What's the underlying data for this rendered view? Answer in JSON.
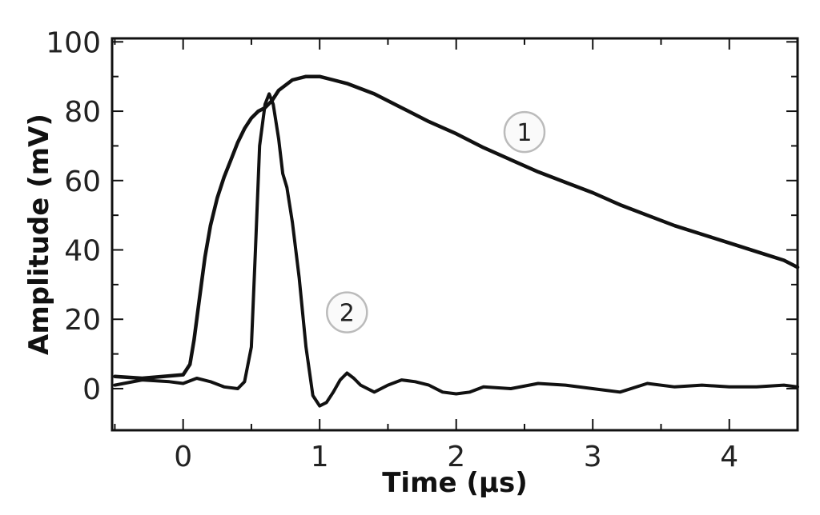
{
  "chart_data": {
    "type": "line",
    "xlabel": "Time (μs)",
    "ylabel": "Amplitude (mV)",
    "xlim": [
      -0.52,
      4.5
    ],
    "ylim": [
      -12,
      101
    ],
    "x_ticks": [
      0,
      1,
      2,
      3,
      4
    ],
    "x_tick_labels": [
      "0",
      "1",
      "2",
      "3",
      "4"
    ],
    "y_ticks": [
      0,
      20,
      40,
      60,
      80,
      100
    ],
    "y_tick_labels": [
      "0",
      "20",
      "40",
      "60",
      "80",
      "100"
    ],
    "x_minor_step": 0.5,
    "y_minor_step": 10,
    "grid": false,
    "series": [
      {
        "name": "1",
        "x": [
          -0.5,
          -0.3,
          0.0,
          0.05,
          0.08,
          0.12,
          0.16,
          0.2,
          0.25,
          0.3,
          0.35,
          0.4,
          0.45,
          0.5,
          0.55,
          0.6,
          0.65,
          0.7,
          0.8,
          0.9,
          1.0,
          1.1,
          1.2,
          1.4,
          1.6,
          1.8,
          2.0,
          2.2,
          2.4,
          2.6,
          2.8,
          3.0,
          3.2,
          3.4,
          3.6,
          3.8,
          4.0,
          4.2,
          4.4,
          4.5
        ],
        "y": [
          3.5,
          3.0,
          4.0,
          7.0,
          14.0,
          26.0,
          38.0,
          47.0,
          55.0,
          61.0,
          66.0,
          71.0,
          75.0,
          78.0,
          80.0,
          81.0,
          83.0,
          86.0,
          89.0,
          90.0,
          90.0,
          89.0,
          88.0,
          85.0,
          81.0,
          77.0,
          73.5,
          69.5,
          66.0,
          62.5,
          59.5,
          56.5,
          53.0,
          50.0,
          47.0,
          44.5,
          42.0,
          39.5,
          37.0,
          35.0
        ]
      },
      {
        "name": "2",
        "x": [
          -0.5,
          -0.3,
          -0.1,
          0.0,
          0.1,
          0.2,
          0.3,
          0.4,
          0.45,
          0.5,
          0.53,
          0.56,
          0.6,
          0.63,
          0.66,
          0.7,
          0.73,
          0.76,
          0.8,
          0.85,
          0.9,
          0.95,
          1.0,
          1.05,
          1.1,
          1.15,
          1.2,
          1.25,
          1.3,
          1.4,
          1.5,
          1.6,
          1.7,
          1.8,
          1.9,
          2.0,
          2.1,
          2.2,
          2.4,
          2.6,
          2.8,
          3.0,
          3.2,
          3.4,
          3.6,
          3.8,
          4.0,
          4.2,
          4.4,
          4.5
        ],
        "y": [
          1.0,
          2.5,
          2.0,
          1.5,
          3.0,
          2.0,
          0.5,
          0.0,
          2.0,
          12.0,
          40.0,
          70.0,
          82.0,
          85.0,
          82.0,
          72.0,
          62.0,
          58.0,
          48.0,
          32.0,
          12.0,
          -2.0,
          -5.0,
          -4.0,
          -1.0,
          2.5,
          4.5,
          3.0,
          1.0,
          -1.0,
          1.0,
          2.5,
          2.0,
          1.0,
          -1.0,
          -1.5,
          -1.0,
          0.5,
          0.0,
          1.5,
          1.0,
          0.0,
          -1.0,
          1.5,
          0.5,
          1.0,
          0.5,
          0.5,
          1.0,
          0.5
        ]
      }
    ],
    "markers": [
      {
        "label": "1",
        "x": 2.5,
        "y": 74
      },
      {
        "label": "2",
        "x": 1.2,
        "y": 22
      }
    ]
  }
}
